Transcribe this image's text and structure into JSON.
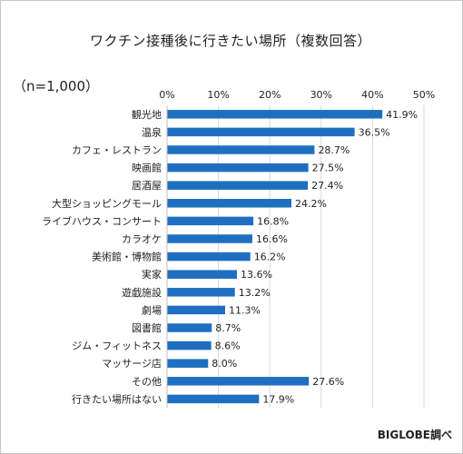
{
  "title": "ワクチン接種後に行きたい場所（複数回答）",
  "sample_note": "（n=1,000）",
  "source": "BIGLOBE調べ",
  "colors": {
    "bar": "#1f6fc1",
    "grid": "#d9d9d9"
  },
  "chart_data": {
    "type": "bar",
    "orientation": "horizontal",
    "title": "ワクチン接種後に行きたい場所（複数回答）",
    "xlim": [
      0,
      50
    ],
    "ticks": [
      0,
      10,
      20,
      30,
      40,
      50
    ],
    "tick_labels": [
      "0%",
      "10%",
      "20%",
      "30%",
      "40%",
      "50%"
    ],
    "axis_position": "top",
    "grid": true,
    "categories": [
      "観光地",
      "温泉",
      "カフェ・レストラン",
      "映画館",
      "居酒屋",
      "大型ショッピングモール",
      "ライブハウス・コンサート",
      "カラオケ",
      "美術館・博物館",
      "実家",
      "遊戯施設",
      "劇場",
      "図書館",
      "ジム・フィットネス",
      "マッサージ店",
      "その他",
      "行きたい場所はない"
    ],
    "values": [
      41.9,
      36.5,
      28.7,
      27.5,
      27.4,
      24.2,
      16.8,
      16.6,
      16.2,
      13.6,
      13.2,
      11.3,
      8.7,
      8.6,
      8.0,
      27.6,
      17.9
    ],
    "value_labels": [
      "41.9%",
      "36.5%",
      "28.7%",
      "27.5%",
      "27.4%",
      "24.2%",
      "16.8%",
      "16.6%",
      "16.2%",
      "13.6%",
      "13.2%",
      "11.3%",
      "8.7%",
      "8.6%",
      "8.0%",
      "27.6%",
      "17.9%"
    ]
  }
}
